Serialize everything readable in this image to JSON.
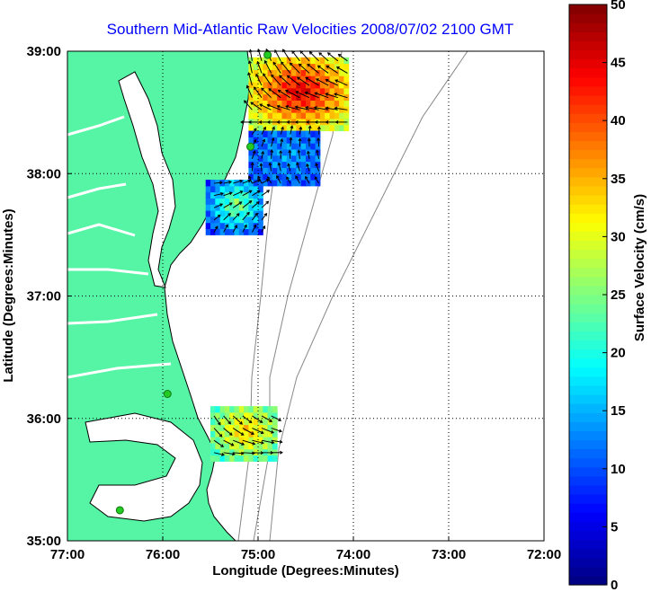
{
  "chart_data": {
    "type": "heatmap",
    "title": "Southern Mid-Atlantic Raw Velocities 2008/07/02 2100 GMT",
    "xlabel": "Longitude (Degrees:Minutes)",
    "ylabel": "Latitude (Degrees:Minutes)",
    "xlim": [
      -77,
      -72
    ],
    "ylim": [
      35,
      39
    ],
    "x_ticks": [
      {
        "value": -77,
        "label": "77:00"
      },
      {
        "value": -76,
        "label": "76:00"
      },
      {
        "value": -75,
        "label": "75:00"
      },
      {
        "value": -74,
        "label": "74:00"
      },
      {
        "value": -73,
        "label": "73:00"
      },
      {
        "value": -72,
        "label": "72:00"
      }
    ],
    "y_ticks": [
      {
        "value": 35,
        "label": "35:00"
      },
      {
        "value": 36,
        "label": "36:00"
      },
      {
        "value": 37,
        "label": "37:00"
      },
      {
        "value": 38,
        "label": "38:00"
      },
      {
        "value": 39,
        "label": "39:00"
      }
    ],
    "grid": true,
    "colorbar": {
      "label": "Surface Velocity (cm/s)",
      "range": [
        0,
        50
      ],
      "ticks": [
        {
          "value": 0,
          "label": "0"
        },
        {
          "value": 5,
          "label": "5"
        },
        {
          "value": 10,
          "label": "10"
        },
        {
          "value": 15,
          "label": "15"
        },
        {
          "value": 20,
          "label": "20"
        },
        {
          "value": 25,
          "label": "25"
        },
        {
          "value": 30,
          "label": "30"
        },
        {
          "value": 35,
          "label": "35"
        },
        {
          "value": 40,
          "label": "40"
        },
        {
          "value": 45,
          "label": "45"
        },
        {
          "value": 50,
          "label": "50"
        }
      ]
    },
    "stations": [
      {
        "lon": -74.9,
        "lat": 38.97
      },
      {
        "lon": -75.08,
        "lat": 38.22
      },
      {
        "lon": -75.95,
        "lat": 36.2
      },
      {
        "lon": -76.45,
        "lat": 35.25
      }
    ],
    "regions": [
      {
        "lon_min": -75.1,
        "lon_max": -74.05,
        "lat_min": 38.35,
        "lat_max": 38.95,
        "base_speed": 28,
        "peak": 46
      },
      {
        "lon_min": -75.1,
        "lon_max": -74.35,
        "lat_min": 37.9,
        "lat_max": 38.35,
        "base_speed": 10,
        "peak": 14
      },
      {
        "lon_min": -75.55,
        "lon_max": -74.95,
        "lat_min": 37.5,
        "lat_max": 37.95,
        "base_speed": 9,
        "peak": 26
      },
      {
        "lon_min": -75.5,
        "lon_max": -74.8,
        "lat_min": 35.65,
        "lat_max": 36.1,
        "base_speed": 22,
        "peak": 34
      }
    ]
  },
  "colors": {
    "land": "#55f5a5",
    "coastline": "#000000",
    "bathymetry": "#888888",
    "grid": "#000000",
    "station": "#22cc22",
    "arrow": "#000000"
  }
}
